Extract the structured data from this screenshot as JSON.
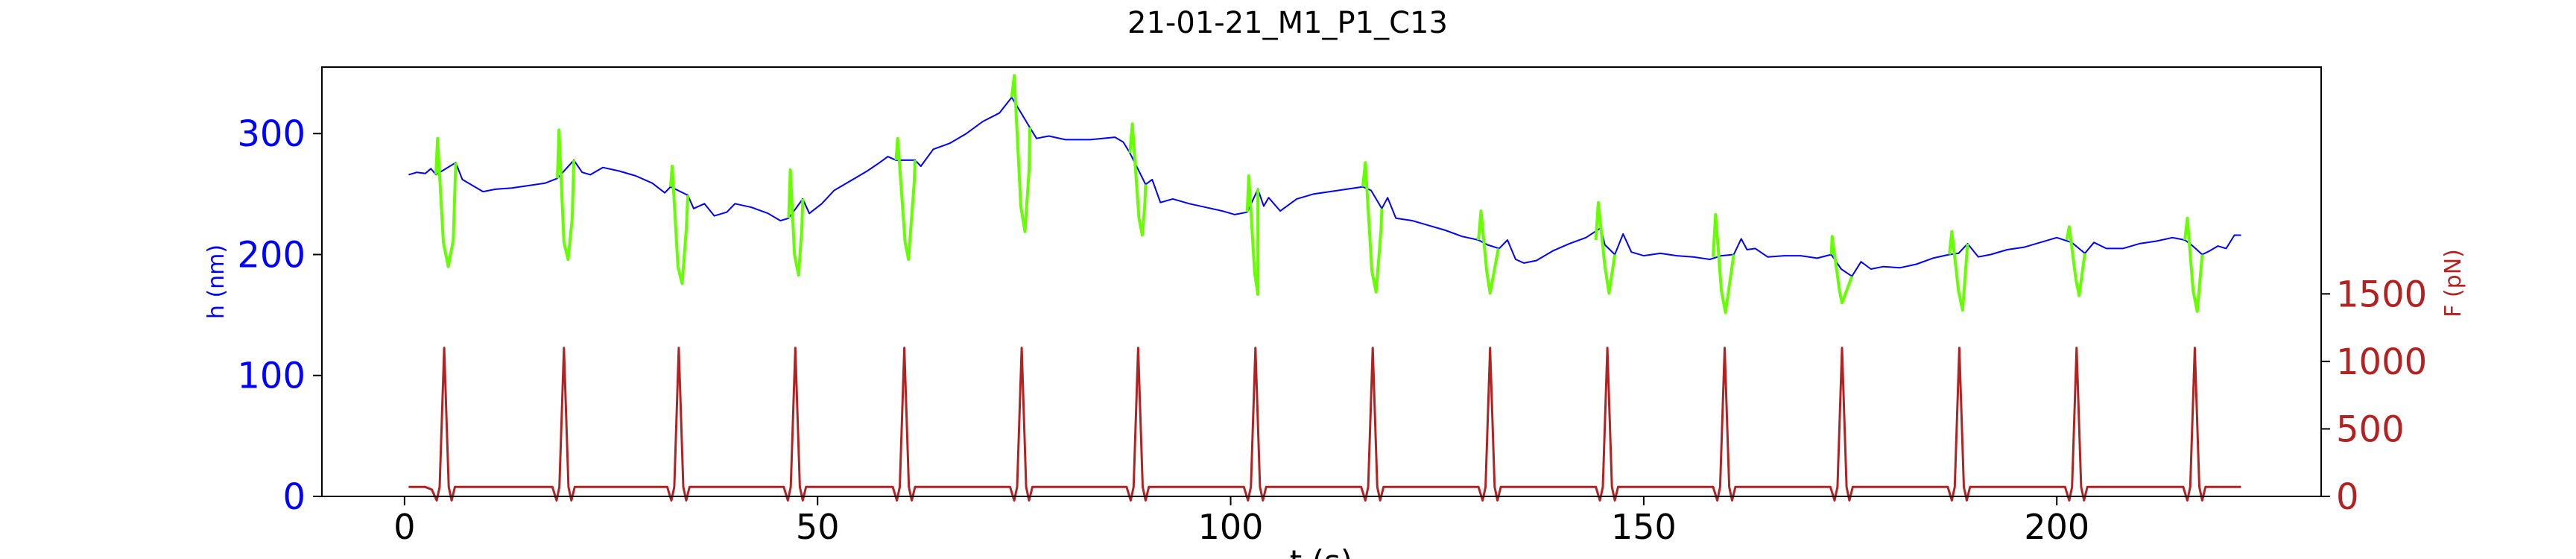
{
  "chart_data": {
    "type": "line",
    "title": "21-01-21_M1_P1_C13",
    "xlabel": "t (s)",
    "ylabel_left": "h (nm)",
    "ylabel_right": "F (pN)",
    "xlim": [
      -10,
      232
    ],
    "ylim_left": [
      0,
      355
    ],
    "ylim_right": [
      0,
      3180
    ],
    "xticks": [
      0,
      50,
      100,
      150,
      200
    ],
    "yticks_left": [
      0,
      100,
      200,
      300
    ],
    "yticks_right": [
      0,
      500,
      1000,
      1500
    ],
    "grid": false,
    "colors": {
      "height_line": "#0000ff",
      "pulse_line": "#66ff00",
      "force_line": "#b22222",
      "left_axis": "#0000ff",
      "right_axis": "#b22222",
      "text": "#000000"
    },
    "pulse_times": [
      4.8,
      19.3,
      33.2,
      47.3,
      60.5,
      74.7,
      88.8,
      103.0,
      117.2,
      131.4,
      145.6,
      159.8,
      174.0,
      188.2,
      202.4,
      216.7
    ],
    "series": [
      {
        "axis": "left",
        "points": [
          [
            0.5,
            266
          ],
          [
            1.5,
            268
          ],
          [
            2.5,
            267
          ],
          [
            3.2,
            271
          ],
          [
            3.8,
            266
          ],
          [
            6.2,
            276
          ],
          [
            7,
            262
          ],
          [
            8,
            258
          ],
          [
            9.5,
            252
          ],
          [
            11,
            254
          ],
          [
            13,
            255
          ],
          [
            15,
            257
          ],
          [
            17,
            259
          ],
          [
            18.5,
            263
          ],
          [
            20.5,
            278
          ],
          [
            21.5,
            268
          ],
          [
            22.5,
            266
          ],
          [
            24,
            272
          ],
          [
            26,
            269
          ],
          [
            28,
            265
          ],
          [
            30,
            259
          ],
          [
            31.5,
            251
          ],
          [
            32.2,
            256
          ],
          [
            34.3,
            249
          ],
          [
            35,
            238
          ],
          [
            36.3,
            242
          ],
          [
            37.5,
            232
          ],
          [
            39,
            235
          ],
          [
            40,
            242
          ],
          [
            42,
            239
          ],
          [
            44,
            234
          ],
          [
            45.5,
            228
          ],
          [
            46.5,
            230
          ],
          [
            48.2,
            246
          ],
          [
            49,
            234
          ],
          [
            50.5,
            242
          ],
          [
            52,
            253
          ],
          [
            54,
            261
          ],
          [
            56,
            269
          ],
          [
            57.5,
            276
          ],
          [
            58.5,
            281
          ],
          [
            59.5,
            278
          ],
          [
            61.8,
            278
          ],
          [
            62.5,
            273
          ],
          [
            64,
            287
          ],
          [
            66,
            292
          ],
          [
            68,
            300
          ],
          [
            70,
            310
          ],
          [
            72,
            317
          ],
          [
            73.5,
            330
          ],
          [
            75.7,
            305
          ],
          [
            76.5,
            296
          ],
          [
            78,
            298
          ],
          [
            80,
            295
          ],
          [
            83,
            295
          ],
          [
            86,
            297
          ],
          [
            87,
            293
          ],
          [
            87.8,
            284
          ],
          [
            89.7,
            258
          ],
          [
            90.5,
            262
          ],
          [
            91.5,
            243
          ],
          [
            93,
            246
          ],
          [
            95,
            242
          ],
          [
            97,
            239
          ],
          [
            99,
            236
          ],
          [
            100.5,
            233
          ],
          [
            102,
            235
          ],
          [
            103.3,
            254
          ],
          [
            104,
            240
          ],
          [
            104.6,
            247
          ],
          [
            106,
            236
          ],
          [
            108,
            246
          ],
          [
            110,
            250
          ],
          [
            112,
            252
          ],
          [
            114,
            254
          ],
          [
            116,
            256
          ],
          [
            117,
            253
          ],
          [
            118.3,
            238
          ],
          [
            119,
            247
          ],
          [
            120,
            230
          ],
          [
            122,
            228
          ],
          [
            124,
            224
          ],
          [
            126,
            220
          ],
          [
            128,
            215
          ],
          [
            130,
            212
          ],
          [
            131.1,
            208
          ],
          [
            132.5,
            205
          ],
          [
            133.5,
            212
          ],
          [
            134.5,
            196
          ],
          [
            135.5,
            193
          ],
          [
            137,
            195
          ],
          [
            139,
            203
          ],
          [
            141,
            209
          ],
          [
            143,
            214
          ],
          [
            144.8,
            222
          ],
          [
            145.3,
            208
          ],
          [
            146.5,
            200
          ],
          [
            147.5,
            217
          ],
          [
            148.5,
            202
          ],
          [
            150,
            199
          ],
          [
            152,
            201
          ],
          [
            154,
            199
          ],
          [
            156,
            198
          ],
          [
            158,
            196
          ],
          [
            159.4,
            199
          ],
          [
            160.9,
            200
          ],
          [
            161.8,
            213
          ],
          [
            162.5,
            204
          ],
          [
            163.5,
            205
          ],
          [
            165,
            198
          ],
          [
            167,
            199
          ],
          [
            169,
            199
          ],
          [
            171,
            197
          ],
          [
            172.7,
            200
          ],
          [
            173.9,
            188
          ],
          [
            175.2,
            182
          ],
          [
            176.3,
            194
          ],
          [
            177.5,
            188
          ],
          [
            179,
            190
          ],
          [
            181,
            189
          ],
          [
            183,
            192
          ],
          [
            185,
            197
          ],
          [
            187,
            200
          ],
          [
            188.1,
            201
          ],
          [
            189.2,
            209
          ],
          [
            190.5,
            198
          ],
          [
            192,
            200
          ],
          [
            194,
            204
          ],
          [
            196,
            206
          ],
          [
            198,
            210
          ],
          [
            200,
            214
          ],
          [
            201.8,
            210
          ],
          [
            203.4,
            201
          ],
          [
            204.5,
            210
          ],
          [
            206,
            205
          ],
          [
            208,
            205
          ],
          [
            210,
            209
          ],
          [
            212,
            211
          ],
          [
            214,
            214
          ],
          [
            215.5,
            212
          ],
          [
            216.3,
            208
          ],
          [
            217.6,
            200
          ],
          [
            218.5,
            203
          ],
          [
            219.5,
            207
          ],
          [
            220.5,
            205
          ],
          [
            221.5,
            216
          ],
          [
            222.3,
            216
          ]
        ]
      },
      {
        "axis": "left",
        "segments": [
          [
            [
              3.8,
              266
            ],
            [
              4.0,
              296
            ],
            [
              4.7,
              210
            ],
            [
              5.3,
              190
            ],
            [
              5.9,
              212
            ],
            [
              6.2,
              276
            ]
          ],
          [
            [
              18.5,
              263
            ],
            [
              18.7,
              303
            ],
            [
              19.3,
              210
            ],
            [
              19.8,
              196
            ],
            [
              20.3,
              230
            ],
            [
              20.5,
              278
            ]
          ],
          [
            [
              32.2,
              256
            ],
            [
              32.4,
              273
            ],
            [
              33.1,
              190
            ],
            [
              33.6,
              176
            ],
            [
              34.1,
              220
            ],
            [
              34.3,
              249
            ]
          ],
          [
            [
              46.5,
              230
            ],
            [
              46.7,
              270
            ],
            [
              47.2,
              200
            ],
            [
              47.7,
              183
            ],
            [
              48.1,
              222
            ],
            [
              48.2,
              246
            ]
          ],
          [
            [
              59.5,
              278
            ],
            [
              59.7,
              296
            ],
            [
              60.6,
              210
            ],
            [
              61.0,
              196
            ],
            [
              61.7,
              260
            ],
            [
              61.8,
              278
            ]
          ],
          [
            [
              73.5,
              330
            ],
            [
              73.8,
              348
            ],
            [
              74.6,
              240
            ],
            [
              75.1,
              219
            ],
            [
              75.6,
              270
            ],
            [
              75.7,
              305
            ]
          ],
          [
            [
              87.8,
              284
            ],
            [
              88.1,
              308
            ],
            [
              88.9,
              230
            ],
            [
              89.3,
              216
            ],
            [
              89.6,
              240
            ],
            [
              89.7,
              258
            ]
          ],
          [
            [
              102,
              235
            ],
            [
              102.2,
              265
            ],
            [
              102.9,
              185
            ],
            [
              103.3,
              167
            ],
            [
              103.3,
              254
            ]
          ],
          [
            [
              116,
              256
            ],
            [
              116.3,
              276
            ],
            [
              117.1,
              186
            ],
            [
              117.6,
              169
            ],
            [
              118.2,
              220
            ],
            [
              118.3,
              238
            ]
          ],
          [
            [
              130,
              212
            ],
            [
              130.3,
              236
            ],
            [
              131.0,
              186
            ],
            [
              131.4,
              168
            ],
            [
              132.4,
              205
            ]
          ],
          [
            [
              144.2,
              212
            ],
            [
              144.5,
              243
            ],
            [
              145.3,
              190
            ],
            [
              145.8,
              168
            ],
            [
              146.5,
              200
            ]
          ],
          [
            [
              158.4,
              198
            ],
            [
              158.7,
              233
            ],
            [
              159.4,
              170
            ],
            [
              159.9,
              152
            ],
            [
              160.9,
              200
            ]
          ],
          [
            [
              172.7,
              200
            ],
            [
              172.8,
              215
            ],
            [
              173.7,
              170
            ],
            [
              174.0,
              160
            ],
            [
              175.2,
              182
            ]
          ],
          [
            [
              187.0,
              200
            ],
            [
              187.3,
              219
            ],
            [
              188.1,
              170
            ],
            [
              188.6,
              154
            ],
            [
              189.2,
              209
            ]
          ],
          [
            [
              201.2,
              212
            ],
            [
              201.5,
              223
            ],
            [
              202.3,
              180
            ],
            [
              202.7,
              166
            ],
            [
              203.4,
              201
            ]
          ],
          [
            [
              215.5,
              212
            ],
            [
              215.8,
              230
            ],
            [
              216.5,
              170
            ],
            [
              217.0,
              153
            ],
            [
              217.6,
              200
            ]
          ]
        ]
      },
      {
        "axis": "right",
        "baseline": 70,
        "peak": 1100,
        "dip": -30
      }
    ]
  }
}
